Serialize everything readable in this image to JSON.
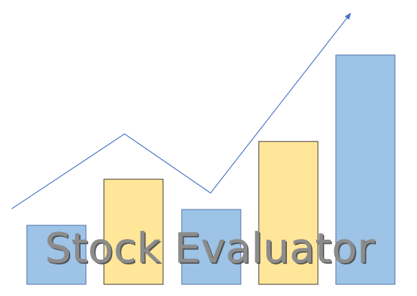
{
  "logo": {
    "title": "Stock Evaluator",
    "colors": {
      "bar_blue": "#9DC3E6",
      "bar_yellow": "#FFE699",
      "bar_outline_blue": "#2F5597",
      "bar_outline_dark": "#000000",
      "trend_line": "#4472C4",
      "title_fill": "#8C8C8C",
      "title_shadow": "#3F3F3F"
    },
    "icons": [
      "bar-chart-icon",
      "trend-arrow-icon"
    ]
  }
}
